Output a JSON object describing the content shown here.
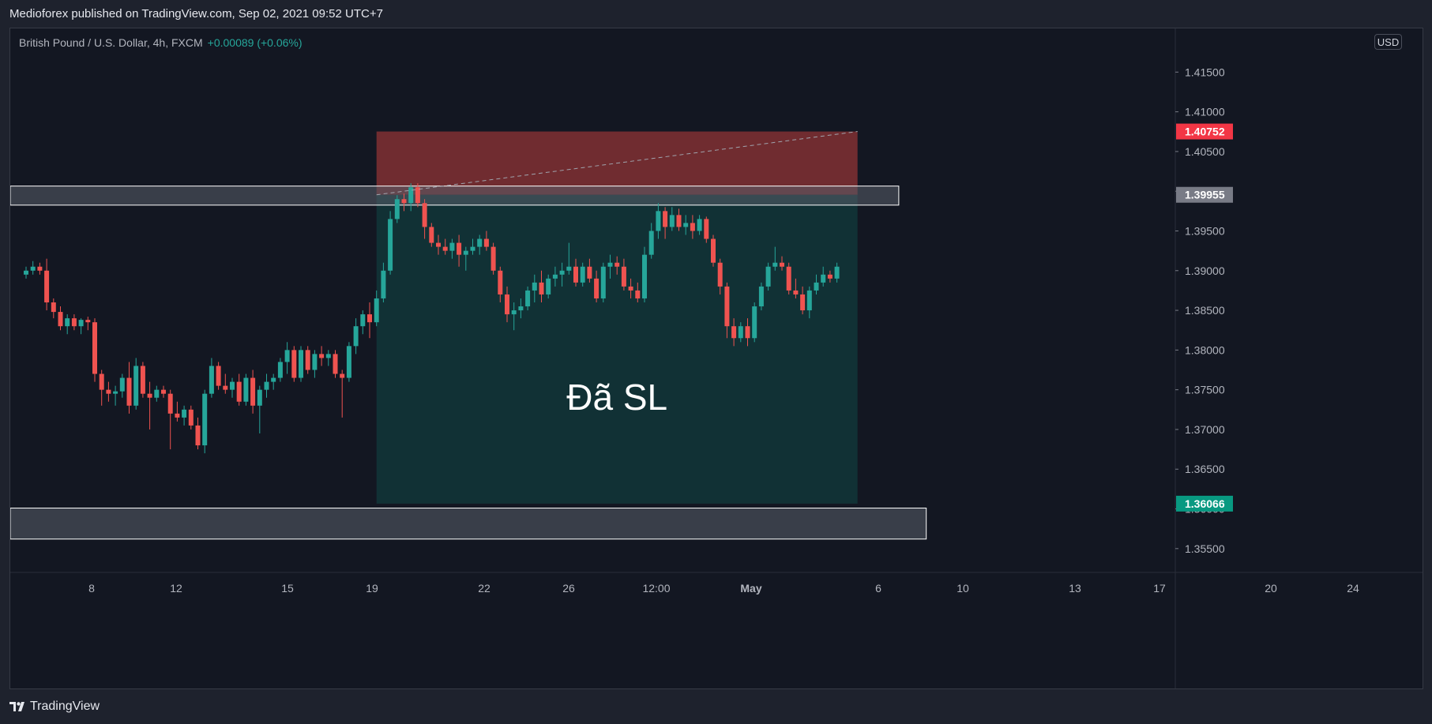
{
  "header": {
    "published_text": "Medioforex published on TradingView.com, Sep 02, 2021 09:52 UTC+7"
  },
  "legend": {
    "symbol": "British Pound / U.S. Dollar, 4h, FXCM",
    "change": "+0.00089 (+0.06%)"
  },
  "currency_button": "USD",
  "footer": {
    "brand": "TradingView",
    "logo_icon": "tradingview-logo-icon"
  },
  "colors": {
    "up": "#26a69a",
    "down": "#ef5350",
    "background": "#131722",
    "frame": "#1e222d",
    "stop_zone": "#8b3234",
    "target_zone": "#113135",
    "label_red": "#f23645",
    "label_green": "#089981",
    "label_gray": "#787b86"
  },
  "chart_data": {
    "type": "candlestick",
    "symbol": "British Pound / U.S. Dollar",
    "interval": "4h",
    "exchange": "FXCM",
    "ylim": [
      1.352,
      1.4205
    ],
    "y_ticks": [
      "1.41500",
      "1.41000",
      "1.40500",
      "1.40000",
      "1.39500",
      "1.39000",
      "1.38500",
      "1.38000",
      "1.37500",
      "1.37000",
      "1.36500",
      "1.36000",
      "1.35500"
    ],
    "x_tick_labels": [
      "8",
      "12",
      "15",
      "19",
      "22",
      "26",
      "12:00",
      "May",
      "6",
      "10",
      "13",
      "17",
      "20",
      "24"
    ],
    "price_labels": [
      {
        "value": "1.40752",
        "role": "stop"
      },
      {
        "value": "1.39955",
        "role": "entry"
      },
      {
        "value": "1.36066",
        "role": "target"
      }
    ],
    "annotation": "Đã SL",
    "short_position": {
      "entry": 1.39955,
      "stop": 1.40752,
      "target": 1.36066,
      "start_bar": 51,
      "end_bar": 121
    },
    "zones": [
      {
        "from": 1.39825,
        "to": 1.40065,
        "start_bar": 0,
        "end_bar": 127
      },
      {
        "from": 1.3562,
        "to": 1.3601,
        "start_bar": 0,
        "end_bar": 131
      }
    ],
    "candles": [
      [
        1.3895,
        1.3905,
        1.389,
        1.39
      ],
      [
        1.39,
        1.3912,
        1.3895,
        1.3905
      ],
      [
        1.3905,
        1.391,
        1.3895,
        1.39
      ],
      [
        1.39,
        1.3915,
        1.385,
        1.386
      ],
      [
        1.386,
        1.3865,
        1.384,
        1.3848
      ],
      [
        1.3848,
        1.3855,
        1.3825,
        1.383
      ],
      [
        1.383,
        1.3845,
        1.382,
        1.384
      ],
      [
        1.384,
        1.3845,
        1.3825,
        1.383
      ],
      [
        1.383,
        1.384,
        1.382,
        1.3838
      ],
      [
        1.3838,
        1.3842,
        1.3825,
        1.3835
      ],
      [
        1.3835,
        1.384,
        1.376,
        1.377
      ],
      [
        1.377,
        1.3775,
        1.373,
        1.375
      ],
      [
        1.375,
        1.376,
        1.3735,
        1.3745
      ],
      [
        1.3745,
        1.3755,
        1.373,
        1.3748
      ],
      [
        1.3748,
        1.377,
        1.374,
        1.3765
      ],
      [
        1.3765,
        1.3785,
        1.372,
        1.373
      ],
      [
        1.373,
        1.379,
        1.3725,
        1.378
      ],
      [
        1.378,
        1.3785,
        1.374,
        1.3745
      ],
      [
        1.3745,
        1.376,
        1.37,
        1.374
      ],
      [
        1.374,
        1.3755,
        1.3735,
        1.375
      ],
      [
        1.375,
        1.3755,
        1.374,
        1.3745
      ],
      [
        1.3745,
        1.375,
        1.3675,
        1.372
      ],
      [
        1.372,
        1.3735,
        1.371,
        1.3715
      ],
      [
        1.3715,
        1.373,
        1.3705,
        1.3725
      ],
      [
        1.3725,
        1.373,
        1.37,
        1.3705
      ],
      [
        1.3705,
        1.3715,
        1.3675,
        1.368
      ],
      [
        1.368,
        1.375,
        1.367,
        1.3745
      ],
      [
        1.3745,
        1.379,
        1.374,
        1.378
      ],
      [
        1.378,
        1.3785,
        1.375,
        1.3755
      ],
      [
        1.3755,
        1.377,
        1.3745,
        1.375
      ],
      [
        1.375,
        1.3765,
        1.374,
        1.376
      ],
      [
        1.376,
        1.377,
        1.373,
        1.3735
      ],
      [
        1.3735,
        1.377,
        1.373,
        1.3765
      ],
      [
        1.3765,
        1.3775,
        1.372,
        1.373
      ],
      [
        1.373,
        1.3755,
        1.3695,
        1.375
      ],
      [
        1.375,
        1.377,
        1.374,
        1.376
      ],
      [
        1.376,
        1.377,
        1.375,
        1.3765
      ],
      [
        1.3765,
        1.379,
        1.376,
        1.3785
      ],
      [
        1.3785,
        1.381,
        1.377,
        1.38
      ],
      [
        1.38,
        1.3805,
        1.376,
        1.3765
      ],
      [
        1.3765,
        1.3805,
        1.376,
        1.38
      ],
      [
        1.38,
        1.3805,
        1.377,
        1.3775
      ],
      [
        1.3775,
        1.38,
        1.3765,
        1.3795
      ],
      [
        1.3795,
        1.3805,
        1.378,
        1.379
      ],
      [
        1.379,
        1.38,
        1.378,
        1.3795
      ],
      [
        1.3795,
        1.38,
        1.3765,
        1.377
      ],
      [
        1.377,
        1.3775,
        1.3715,
        1.3765
      ],
      [
        1.3765,
        1.381,
        1.376,
        1.3805
      ],
      [
        1.3805,
        1.384,
        1.3795,
        1.383
      ],
      [
        1.383,
        1.385,
        1.382,
        1.3845
      ],
      [
        1.3845,
        1.386,
        1.3815,
        1.3835
      ],
      [
        1.3835,
        1.3875,
        1.383,
        1.3865
      ],
      [
        1.3865,
        1.391,
        1.386,
        1.39
      ],
      [
        1.39,
        1.3975,
        1.3895,
        1.3965
      ],
      [
        1.3965,
        1.3995,
        1.396,
        1.399
      ],
      [
        1.399,
        1.3997,
        1.3975,
        1.3985
      ],
      [
        1.3985,
        1.401,
        1.3975,
        1.4005
      ],
      [
        1.4005,
        1.401,
        1.398,
        1.3985
      ],
      [
        1.3985,
        1.399,
        1.394,
        1.3955
      ],
      [
        1.3955,
        1.396,
        1.393,
        1.3935
      ],
      [
        1.3935,
        1.3945,
        1.392,
        1.393
      ],
      [
        1.393,
        1.394,
        1.392,
        1.3925
      ],
      [
        1.3925,
        1.394,
        1.3915,
        1.3935
      ],
      [
        1.3935,
        1.3945,
        1.3905,
        1.392
      ],
      [
        1.392,
        1.393,
        1.39,
        1.3925
      ],
      [
        1.3925,
        1.394,
        1.392,
        1.393
      ],
      [
        1.393,
        1.3945,
        1.392,
        1.394
      ],
      [
        1.394,
        1.395,
        1.3925,
        1.393
      ],
      [
        1.393,
        1.3935,
        1.3895,
        1.39
      ],
      [
        1.39,
        1.3905,
        1.386,
        1.387
      ],
      [
        1.387,
        1.388,
        1.3835,
        1.3845
      ],
      [
        1.3845,
        1.386,
        1.3825,
        1.385
      ],
      [
        1.385,
        1.3865,
        1.384,
        1.3855
      ],
      [
        1.3855,
        1.388,
        1.385,
        1.3875
      ],
      [
        1.3875,
        1.3895,
        1.386,
        1.3885
      ],
      [
        1.3885,
        1.39,
        1.386,
        1.387
      ],
      [
        1.387,
        1.3895,
        1.3865,
        1.389
      ],
      [
        1.389,
        1.3905,
        1.388,
        1.3895
      ],
      [
        1.3895,
        1.391,
        1.388,
        1.39
      ],
      [
        1.39,
        1.3935,
        1.3895,
        1.3905
      ],
      [
        1.3905,
        1.3915,
        1.388,
        1.3885
      ],
      [
        1.3885,
        1.391,
        1.388,
        1.3905
      ],
      [
        1.3905,
        1.3915,
        1.3885,
        1.389
      ],
      [
        1.389,
        1.39,
        1.386,
        1.3865
      ],
      [
        1.3865,
        1.391,
        1.386,
        1.3905
      ],
      [
        1.3905,
        1.392,
        1.389,
        1.391
      ],
      [
        1.391,
        1.3918,
        1.3895,
        1.3905
      ],
      [
        1.3905,
        1.3915,
        1.3875,
        1.388
      ],
      [
        1.388,
        1.389,
        1.3865,
        1.3875
      ],
      [
        1.3875,
        1.3885,
        1.386,
        1.3865
      ],
      [
        1.3865,
        1.393,
        1.386,
        1.392
      ],
      [
        1.392,
        1.396,
        1.3915,
        1.395
      ],
      [
        1.395,
        1.3985,
        1.394,
        1.3975
      ],
      [
        1.3975,
        1.398,
        1.394,
        1.3955
      ],
      [
        1.3955,
        1.398,
        1.395,
        1.397
      ],
      [
        1.397,
        1.3978,
        1.395,
        1.3955
      ],
      [
        1.3955,
        1.397,
        1.3945,
        1.396
      ],
      [
        1.396,
        1.397,
        1.394,
        1.395
      ],
      [
        1.395,
        1.397,
        1.3945,
        1.3965
      ],
      [
        1.3965,
        1.3968,
        1.3935,
        1.394
      ],
      [
        1.394,
        1.3945,
        1.3905,
        1.391
      ],
      [
        1.391,
        1.3915,
        1.387,
        1.388
      ],
      [
        1.388,
        1.3885,
        1.3815,
        1.383
      ],
      [
        1.383,
        1.384,
        1.3805,
        1.3815
      ],
      [
        1.3815,
        1.3835,
        1.381,
        1.383
      ],
      [
        1.383,
        1.384,
        1.3805,
        1.3815
      ],
      [
        1.3815,
        1.386,
        1.381,
        1.3855
      ],
      [
        1.3855,
        1.3885,
        1.385,
        1.388
      ],
      [
        1.388,
        1.391,
        1.3875,
        1.3905
      ],
      [
        1.3905,
        1.393,
        1.39,
        1.391
      ],
      [
        1.391,
        1.3918,
        1.39,
        1.3905
      ],
      [
        1.3905,
        1.391,
        1.387,
        1.3875
      ],
      [
        1.3875,
        1.389,
        1.3865,
        1.387
      ],
      [
        1.387,
        1.388,
        1.3845,
        1.385
      ],
      [
        1.385,
        1.388,
        1.384,
        1.3875
      ],
      [
        1.3875,
        1.3895,
        1.387,
        1.3885
      ],
      [
        1.3885,
        1.3905,
        1.388,
        1.3895
      ],
      [
        1.3895,
        1.39,
        1.3885,
        1.389
      ],
      [
        1.389,
        1.391,
        1.3885,
        1.3905
      ]
    ]
  }
}
